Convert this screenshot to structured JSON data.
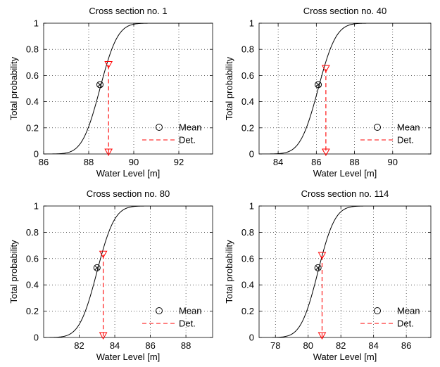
{
  "chart_data": [
    {
      "type": "line",
      "title": "Cross section no. 1",
      "xlabel": "Water Level [m]",
      "ylabel": "Total probability",
      "xlim": [
        86,
        93.5
      ],
      "ylim": [
        0,
        1
      ],
      "xticks": [
        86,
        88,
        90,
        92
      ],
      "yticks": [
        0,
        0.2,
        0.4,
        0.6,
        0.8,
        1
      ],
      "grid": true,
      "legend_position": "bottom-right",
      "series": [
        {
          "kind": "cdf",
          "mean": 88.5,
          "std": 0.62
        },
        {
          "name": "Mean",
          "kind": "marker",
          "x": 88.5,
          "y": 0.53
        },
        {
          "name": "Det.",
          "kind": "dashed-drop",
          "x": 88.88,
          "y": 0.68
        }
      ]
    },
    {
      "type": "line",
      "title": "Cross section no. 40",
      "xlabel": "Water Level [m]",
      "ylabel": "Total probability",
      "xlim": [
        83,
        92
      ],
      "ylim": [
        0,
        1
      ],
      "xticks": [
        84,
        86,
        88,
        90
      ],
      "yticks": [
        0,
        0.2,
        0.4,
        0.6,
        0.8,
        1
      ],
      "grid": true,
      "legend_position": "bottom-right",
      "series": [
        {
          "kind": "cdf",
          "mean": 86.1,
          "std": 0.74
        },
        {
          "name": "Mean",
          "kind": "marker",
          "x": 86.1,
          "y": 0.53
        },
        {
          "name": "Det.",
          "kind": "dashed-drop",
          "x": 86.5,
          "y": 0.65
        }
      ]
    },
    {
      "type": "line",
      "title": "Cross section no. 80",
      "xlabel": "Water Level [m]",
      "ylabel": "Total probability",
      "xlim": [
        80,
        89.5
      ],
      "ylim": [
        0,
        1
      ],
      "xticks": [
        82,
        84,
        86,
        88
      ],
      "yticks": [
        0,
        0.2,
        0.4,
        0.6,
        0.8,
        1
      ],
      "grid": true,
      "legend_position": "bottom-right",
      "series": [
        {
          "kind": "cdf",
          "mean": 83.0,
          "std": 0.78
        },
        {
          "name": "Mean",
          "kind": "marker",
          "x": 83.0,
          "y": 0.53
        },
        {
          "name": "Det.",
          "kind": "dashed-drop",
          "x": 83.35,
          "y": 0.63
        }
      ]
    },
    {
      "type": "line",
      "title": "Cross section no. 114",
      "xlabel": "Water Level [m]",
      "ylabel": "Total probability",
      "xlim": [
        77,
        87.5
      ],
      "ylim": [
        0,
        1
      ],
      "xticks": [
        78,
        80,
        82,
        84,
        86
      ],
      "yticks": [
        0,
        0.2,
        0.4,
        0.6,
        0.8,
        1
      ],
      "grid": true,
      "legend_position": "bottom-right",
      "series": [
        {
          "kind": "cdf",
          "mean": 80.6,
          "std": 0.82
        },
        {
          "name": "Mean",
          "kind": "marker",
          "x": 80.6,
          "y": 0.53
        },
        {
          "name": "Det.",
          "kind": "dashed-drop",
          "x": 80.85,
          "y": 0.62
        }
      ]
    }
  ]
}
